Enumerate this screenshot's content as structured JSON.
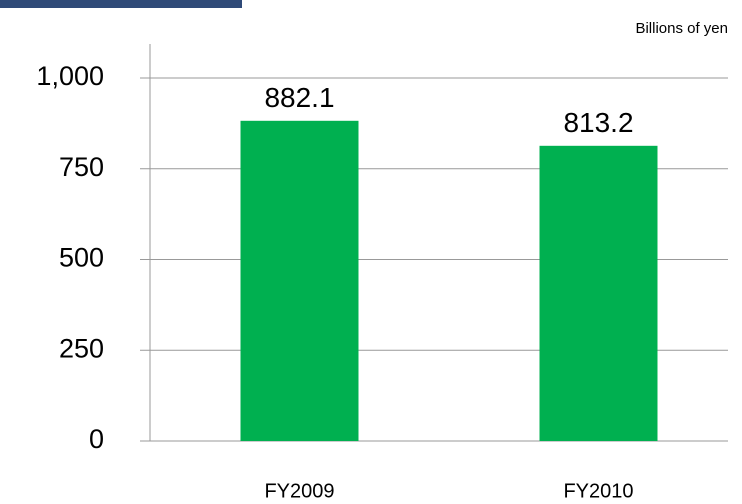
{
  "chart_data": {
    "type": "bar",
    "unit_label": "Billions of yen",
    "categories": [
      "FY2009",
      "FY2010"
    ],
    "values": [
      882.1,
      813.2
    ],
    "color": "#00b050",
    "ylim": [
      0,
      1000
    ],
    "yticks": [
      0,
      250,
      500,
      750,
      {
        "value": 1000,
        "label": "1,000"
      }
    ],
    "grid": true
  }
}
